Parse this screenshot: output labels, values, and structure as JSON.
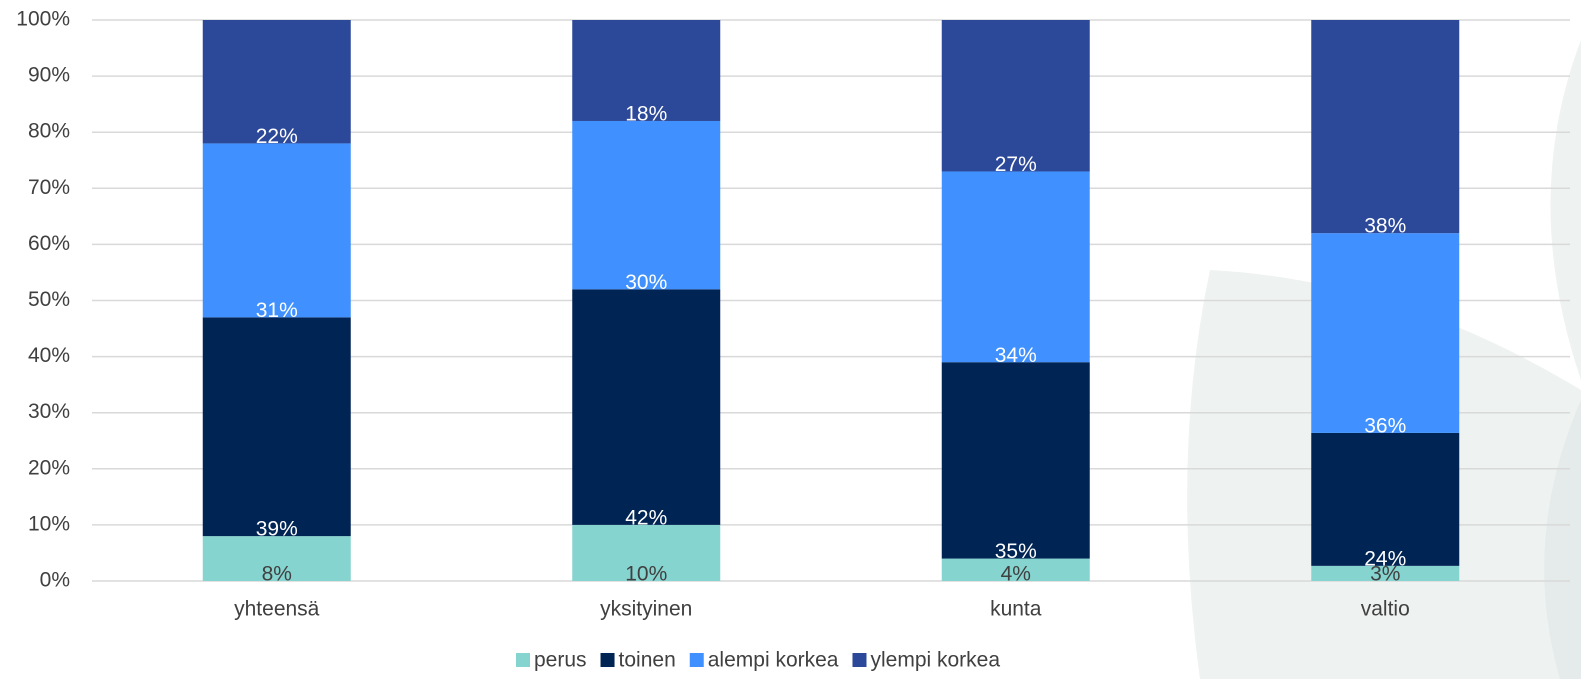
{
  "chart_data": {
    "type": "stacked_bar",
    "categories": [
      "yhteensä",
      "yksityinen",
      "kunta",
      "valtio"
    ],
    "series": [
      {
        "name": "perus",
        "color": "#86d4cf",
        "values": [
          8,
          10,
          4,
          2.7
        ],
        "value_labels": [
          "8%",
          "10%",
          "4%",
          "3%"
        ]
      },
      {
        "name": "toinen",
        "color": "#002454",
        "values": [
          39,
          42,
          35,
          23.7
        ],
        "value_labels": [
          "39%",
          "42%",
          "35%",
          "24%"
        ]
      },
      {
        "name": "alempi korkea",
        "color": "#4091ff",
        "values": [
          31,
          30,
          34,
          35.6
        ],
        "value_labels": [
          "31%",
          "30%",
          "34%",
          "36%"
        ]
      },
      {
        "name": "ylempi korkea",
        "color": "#2c4899",
        "values": [
          22,
          18,
          27,
          38
        ],
        "value_labels": [
          "22%",
          "18%",
          "27%",
          "38%"
        ]
      }
    ],
    "ylim": [
      0,
      100
    ],
    "yticks": [
      {
        "value": 0,
        "label": "0%"
      },
      {
        "value": 10,
        "label": "10%"
      },
      {
        "value": 20,
        "label": "20%"
      },
      {
        "value": 30,
        "label": "30%"
      },
      {
        "value": 40,
        "label": "40%"
      },
      {
        "value": 50,
        "label": "50%"
      },
      {
        "value": 60,
        "label": "60%"
      },
      {
        "value": 70,
        "label": "70%"
      },
      {
        "value": 80,
        "label": "80%"
      },
      {
        "value": 90,
        "label": "90%"
      },
      {
        "value": 100,
        "label": "100%"
      }
    ],
    "grid": true,
    "legend": "bottom"
  }
}
